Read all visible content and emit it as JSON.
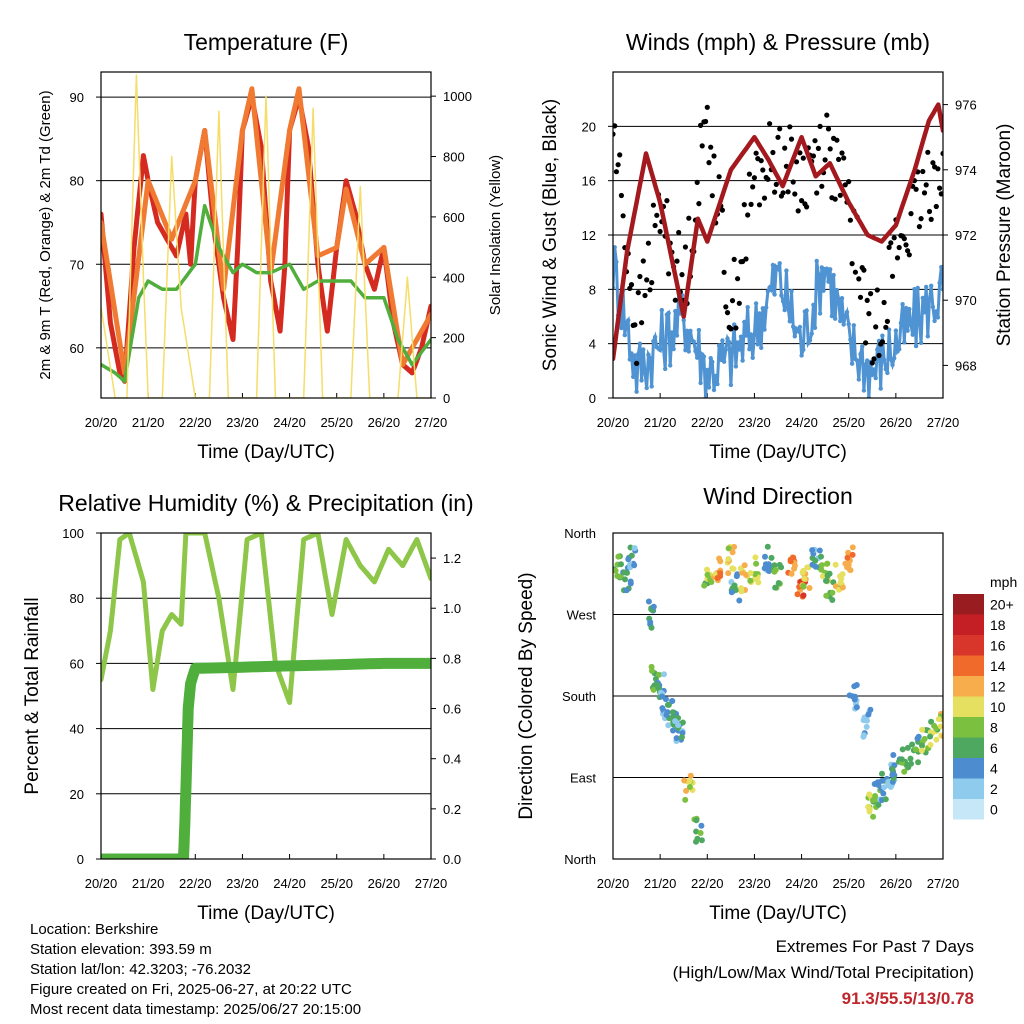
{
  "chart_data": [
    {
      "type": "line",
      "title": "Temperature (F)",
      "xlabel": "Time (Day/UTC)",
      "ylabel": "2m & 9m T (Red, Orange) & 2m Td (Green)",
      "y2label": "Solar Insolation (Yellow)",
      "x_ticks": [
        "20/20",
        "21/20",
        "22/20",
        "23/20",
        "24/20",
        "25/20",
        "26/20",
        "27/20"
      ],
      "ylim": [
        54,
        93
      ],
      "y_ticks": [
        60,
        70,
        80,
        90
      ],
      "y2lim": [
        0,
        1080
      ],
      "y2_ticks": [
        0,
        200,
        400,
        600,
        800,
        1000
      ],
      "grid": true,
      "series": [
        {
          "name": "2m T",
          "color": "#d42a20",
          "x": [
            0,
            0.2,
            0.4,
            0.5,
            0.7,
            0.9,
            1.0,
            1.2,
            1.4,
            1.6,
            1.8,
            1.9,
            2.0,
            2.2,
            2.4,
            2.6,
            2.8,
            2.9,
            3.0,
            3.2,
            3.4,
            3.6,
            3.8,
            3.9,
            4.0,
            4.2,
            4.4,
            4.6,
            4.8,
            5.0,
            5.2,
            5.4,
            5.6,
            5.8,
            6.0,
            6.2,
            6.4,
            6.6,
            6.8,
            7.0
          ],
          "values": [
            76,
            63,
            57,
            56,
            72,
            83,
            80,
            75,
            73,
            71,
            76,
            70,
            80,
            86,
            74,
            66,
            61,
            72,
            86,
            90,
            84,
            68,
            62,
            70,
            86,
            90,
            84,
            70,
            62,
            72,
            80,
            76,
            70,
            67,
            72,
            63,
            58,
            57,
            60,
            65
          ]
        },
        {
          "name": "9m T",
          "color": "#f07a32",
          "x": [
            0,
            0.5,
            1.0,
            1.5,
            2.0,
            2.2,
            2.6,
            3.0,
            3.2,
            3.6,
            4.0,
            4.2,
            4.6,
            5.0,
            5.2,
            5.6,
            6.0,
            6.4,
            7.0
          ],
          "values": [
            75,
            57,
            80,
            73,
            80,
            86,
            67,
            86,
            91,
            69,
            86,
            91,
            71,
            72,
            79,
            70,
            72,
            58,
            64
          ]
        },
        {
          "name": "2m Td",
          "color": "#4fae3c",
          "x": [
            0,
            0.3,
            0.5,
            0.8,
            1.0,
            1.3,
            1.6,
            2.0,
            2.2,
            2.5,
            2.8,
            3.0,
            3.3,
            3.6,
            4.0,
            4.3,
            4.6,
            5.0,
            5.3,
            5.6,
            6.0,
            6.3,
            6.6,
            7.0
          ],
          "values": [
            58,
            57,
            56,
            66,
            68,
            67,
            67,
            70,
            77,
            72,
            69,
            70,
            69,
            69,
            70,
            67,
            68,
            68,
            68,
            66,
            66,
            61,
            58,
            61
          ]
        },
        {
          "name": "Solar Insolation",
          "color": "#f5dd6a",
          "axis": "y2",
          "x": [
            0,
            0.3,
            0.55,
            0.75,
            0.9,
            1.0,
            1.3,
            1.5,
            1.7,
            2.0,
            2.3,
            2.5,
            2.7,
            3.0,
            3.3,
            3.5,
            3.7,
            4.0,
            4.3,
            4.5,
            4.7,
            5.0,
            5.3,
            5.5,
            5.7,
            6.0,
            6.3,
            6.5,
            6.7,
            7.0
          ],
          "values": [
            300,
            0,
            0,
            1070,
            400,
            0,
            0,
            800,
            300,
            0,
            0,
            950,
            0,
            0,
            0,
            1000,
            0,
            0,
            0,
            960,
            0,
            0,
            0,
            700,
            0,
            0,
            0,
            400,
            0,
            0
          ]
        }
      ]
    },
    {
      "type": "line",
      "title": "Winds (mph) & Pressure (mb)",
      "xlabel": "Time (Day/UTC)",
      "ylabel": "Sonic Wind & Gust (Blue, Black)",
      "y2label": "Station Pressure (Maroon)",
      "x_ticks": [
        "20/20",
        "21/20",
        "22/20",
        "23/20",
        "24/20",
        "25/20",
        "26/20",
        "27/20"
      ],
      "ylim": [
        0,
        24
      ],
      "y_ticks": [
        0,
        4,
        8,
        12,
        16,
        20
      ],
      "y2lim": [
        967,
        977
      ],
      "y2_ticks": [
        968,
        970,
        972,
        974,
        976
      ],
      "grid": true,
      "series": [
        {
          "name": "Sonic Wind",
          "color": "#4f93d2",
          "x": [
            0,
            0.5,
            1.0,
            1.5,
            2.0,
            2.5,
            3.0,
            3.5,
            4.0,
            4.5,
            5.0,
            5.5,
            6.0,
            6.5,
            7.0
          ],
          "values": [
            10,
            2,
            4,
            6,
            2,
            3,
            5,
            9,
            4,
            10,
            4,
            2,
            4,
            6,
            8
          ]
        },
        {
          "name": "Gust",
          "color": "#000000",
          "x": [
            0,
            0.5,
            1.0,
            1.5,
            2.0,
            2.5,
            3.0,
            3.5,
            4.0,
            4.5,
            5.0,
            5.5,
            6.0,
            6.5,
            7.0
          ],
          "values": [
            20,
            5,
            14,
            8,
            21,
            6,
            16,
            18,
            16,
            19,
            14,
            4,
            11,
            14,
            18
          ]
        },
        {
          "name": "Station Pressure",
          "color": "#a3191e",
          "axis": "y2",
          "x": [
            0,
            0.3,
            0.7,
            1.0,
            1.5,
            1.8,
            2.0,
            2.5,
            3.0,
            3.3,
            3.6,
            4.0,
            4.3,
            4.6,
            5.0,
            5.4,
            5.7,
            6.0,
            6.4,
            6.7,
            6.9,
            7.0
          ],
          "values": [
            968.2,
            971.5,
            974.5,
            973.0,
            969.5,
            972.5,
            971.8,
            974.0,
            975.0,
            974.3,
            973.5,
            975.0,
            973.8,
            974.2,
            973.0,
            972.0,
            971.8,
            972.3,
            974.0,
            975.5,
            976.0,
            975.2
          ]
        }
      ]
    },
    {
      "type": "line",
      "title": "Relative Humidity (%) & Precipitation (in)",
      "xlabel": "Time (Day/UTC)",
      "ylabel": "Percent & Total Rainfall",
      "x_ticks": [
        "20/20",
        "21/20",
        "22/20",
        "23/20",
        "24/20",
        "25/20",
        "26/20",
        "27/20"
      ],
      "ylim": [
        0,
        100
      ],
      "y_ticks": [
        0,
        20,
        40,
        60,
        80,
        100
      ],
      "y2lim": [
        0,
        1.3
      ],
      "y2_ticks": [
        0.0,
        0.2,
        0.4,
        0.6,
        0.8,
        1.0,
        1.2
      ],
      "grid": true,
      "series": [
        {
          "name": "Relative Humidity",
          "color": "#8ec64a",
          "x": [
            0,
            0.2,
            0.4,
            0.6,
            0.9,
            1.1,
            1.3,
            1.5,
            1.7,
            1.8,
            1.9,
            2.2,
            2.5,
            2.8,
            3.1,
            3.4,
            3.7,
            4.0,
            4.3,
            4.6,
            4.9,
            5.2,
            5.5,
            5.8,
            6.1,
            6.4,
            6.7,
            7.0
          ],
          "values": [
            55,
            70,
            98,
            100,
            85,
            52,
            70,
            75,
            72,
            100,
            100,
            100,
            80,
            52,
            98,
            100,
            60,
            48,
            98,
            100,
            75,
            98,
            90,
            85,
            95,
            90,
            98,
            86
          ]
        },
        {
          "name": "Total Rainfall",
          "color": "#4fae3c",
          "axis": "y2",
          "x": [
            0,
            1.5,
            1.75,
            1.78,
            1.82,
            1.85,
            1.9,
            2.0,
            4.0,
            6.0,
            7.0
          ],
          "values": [
            0,
            0,
            0,
            0.15,
            0.4,
            0.6,
            0.7,
            0.76,
            0.77,
            0.78,
            0.78
          ]
        }
      ]
    },
    {
      "type": "scatter",
      "title": "Wind Direction",
      "xlabel": "Time (Day/UTC)",
      "ylabel": "Direction (Colored By Speed)",
      "x_ticks": [
        "20/20",
        "21/20",
        "22/20",
        "23/20",
        "24/20",
        "25/20",
        "26/20",
        "27/20"
      ],
      "y_ticks": [
        "North",
        "East",
        "South",
        "West",
        "North"
      ],
      "legend": {
        "title": "mph",
        "labels": [
          "0",
          "2",
          "4",
          "6",
          "8",
          "10",
          "12",
          "14",
          "16",
          "18",
          "20+"
        ],
        "colors": [
          "#c6e7f7",
          "#8fcbec",
          "#4c8ccf",
          "#4ea860",
          "#7cc040",
          "#e6e060",
          "#f7ad4b",
          "#f06a2c",
          "#d8362a",
          "#c31f25",
          "#991c20"
        ],
        "position": "right"
      },
      "series": [
        {
          "name": "",
          "x": [
            0.1,
            0.3,
            0.4,
            0.8,
            0.9,
            1.0,
            1.1,
            1.2,
            1.3,
            1.4,
            1.6,
            1.8,
            2.0,
            2.2,
            2.5,
            2.6,
            2.8,
            3.0,
            3.3,
            3.5,
            3.8,
            4.0,
            4.1,
            4.3,
            4.5,
            4.6,
            4.8,
            5.0,
            5.1,
            5.4,
            5.5,
            5.6,
            5.7,
            5.9,
            6.0,
            6.2,
            6.4,
            6.6,
            6.8,
            7.0
          ],
          "values": [
            320,
            310,
            330,
            270,
            200,
            190,
            170,
            160,
            150,
            140,
            80,
            30,
            310,
            320,
            330,
            300,
            310,
            320,
            330,
            310,
            320,
            300,
            310,
            330,
            320,
            300,
            310,
            330,
            180,
            150,
            60,
            70,
            80,
            90,
            100,
            110,
            120,
            130,
            140,
            150
          ],
          "speeds": [
            6,
            4,
            3,
            5,
            6,
            4,
            3,
            4,
            5,
            3,
            9,
            6,
            8,
            12,
            10,
            4,
            11,
            9,
            3,
            6,
            12,
            14,
            10,
            4,
            8,
            6,
            10,
            12,
            3,
            2,
            8,
            6,
            4,
            3,
            4,
            6,
            5,
            7,
            8,
            10
          ]
        }
      ]
    }
  ],
  "info": {
    "location": "Location: Berkshire",
    "elevation": "Station elevation: 393.59 m",
    "latlon": "Station lat/lon: 42.3203; -76.2032",
    "created": "Figure created on Fri, 2025-06-27, at 20:22 UTC",
    "recent": "Most recent data timestamp: 2025/06/27 20:15:00"
  },
  "extremes": {
    "title": "Extremes For Past 7 Days",
    "subtitle": "(High/Low/Max Wind/Total Precipitation)",
    "values": "91.3/55.5/13/0.78"
  }
}
